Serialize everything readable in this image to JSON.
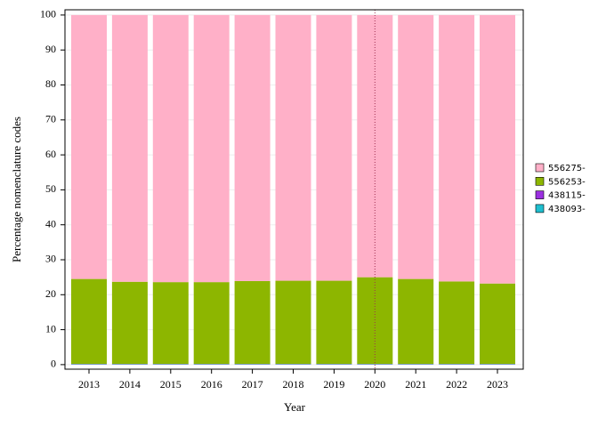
{
  "chart_data": {
    "type": "stacked_bar",
    "x_label": "Year",
    "y_label": "Percentage nomenclature codes",
    "categories": [
      "2013",
      "2014",
      "2015",
      "2016",
      "2017",
      "2018",
      "2019",
      "2020",
      "2021",
      "2022",
      "2023"
    ],
    "series": [
      {
        "name": "438093-",
        "color": "#1fbfcf",
        "values": [
          0.1,
          0.1,
          0.1,
          0.1,
          0.1,
          0.1,
          0.1,
          0.1,
          0.1,
          0.1,
          0.1
        ]
      },
      {
        "name": "438115-",
        "color": "#9b30e0",
        "values": [
          0.1,
          0.1,
          0.1,
          0.1,
          0.1,
          0.1,
          0.1,
          0.1,
          0.1,
          0.1,
          0.1
        ]
      },
      {
        "name": "556253-",
        "color": "#8db600",
        "values": [
          24.3,
          23.5,
          23.4,
          23.4,
          23.7,
          23.8,
          23.8,
          24.8,
          24.3,
          23.6,
          23.0
        ]
      },
      {
        "name": "556275-",
        "color": "#ffb0c8",
        "values": [
          75.5,
          76.3,
          76.4,
          76.4,
          76.1,
          76.0,
          76.0,
          75.0,
          75.5,
          76.2,
          76.8
        ]
      }
    ],
    "ylim": [
      -1.3,
      101.5
    ],
    "yticks": [
      0,
      10,
      20,
      30,
      40,
      50,
      60,
      70,
      80,
      90,
      100
    ],
    "grid": true
  }
}
